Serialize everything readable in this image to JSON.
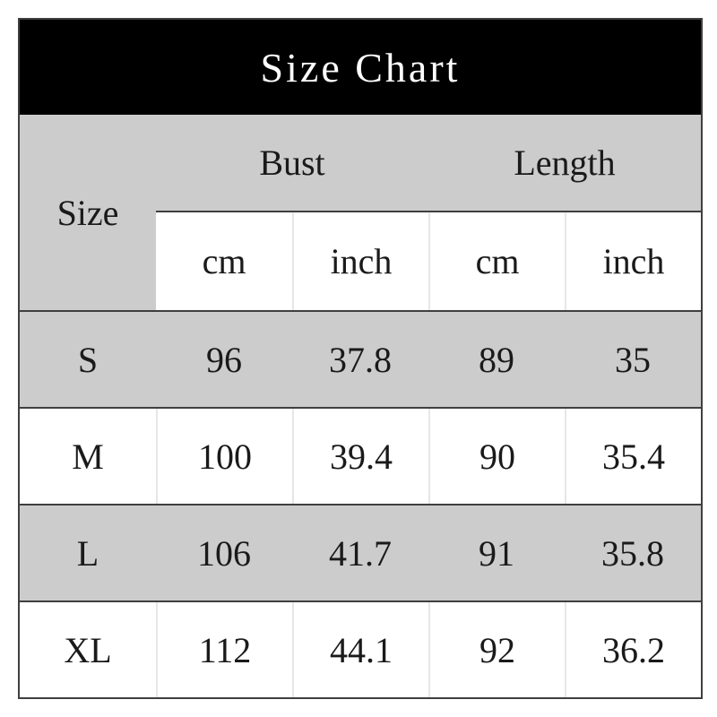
{
  "chart_data": {
    "type": "table",
    "title": "Size Chart",
    "corner_label": "Size",
    "column_groups": [
      "Bust",
      "Length"
    ],
    "unit_headers": [
      "cm",
      "inch",
      "cm",
      "inch"
    ],
    "columns": [
      "Size",
      "Bust cm",
      "Bust inch",
      "Length cm",
      "Length inch"
    ],
    "rows": [
      [
        "S",
        "96",
        "37.8",
        "89",
        "35"
      ],
      [
        "M",
        "100",
        "39.4",
        "90",
        "35.4"
      ],
      [
        "L",
        "106",
        "41.7",
        "91",
        "35.8"
      ],
      [
        "XL",
        "112",
        "44.1",
        "92",
        "36.2"
      ]
    ]
  },
  "colors": {
    "title_bar_bg": "#000000",
    "title_text": "#ffffff",
    "stripe_gray": "#cccccc",
    "stripe_white": "#ffffff",
    "border_dark": "#3f3f3f",
    "separator_light": "#e6e6e6",
    "body_text": "#1a1a1a"
  }
}
